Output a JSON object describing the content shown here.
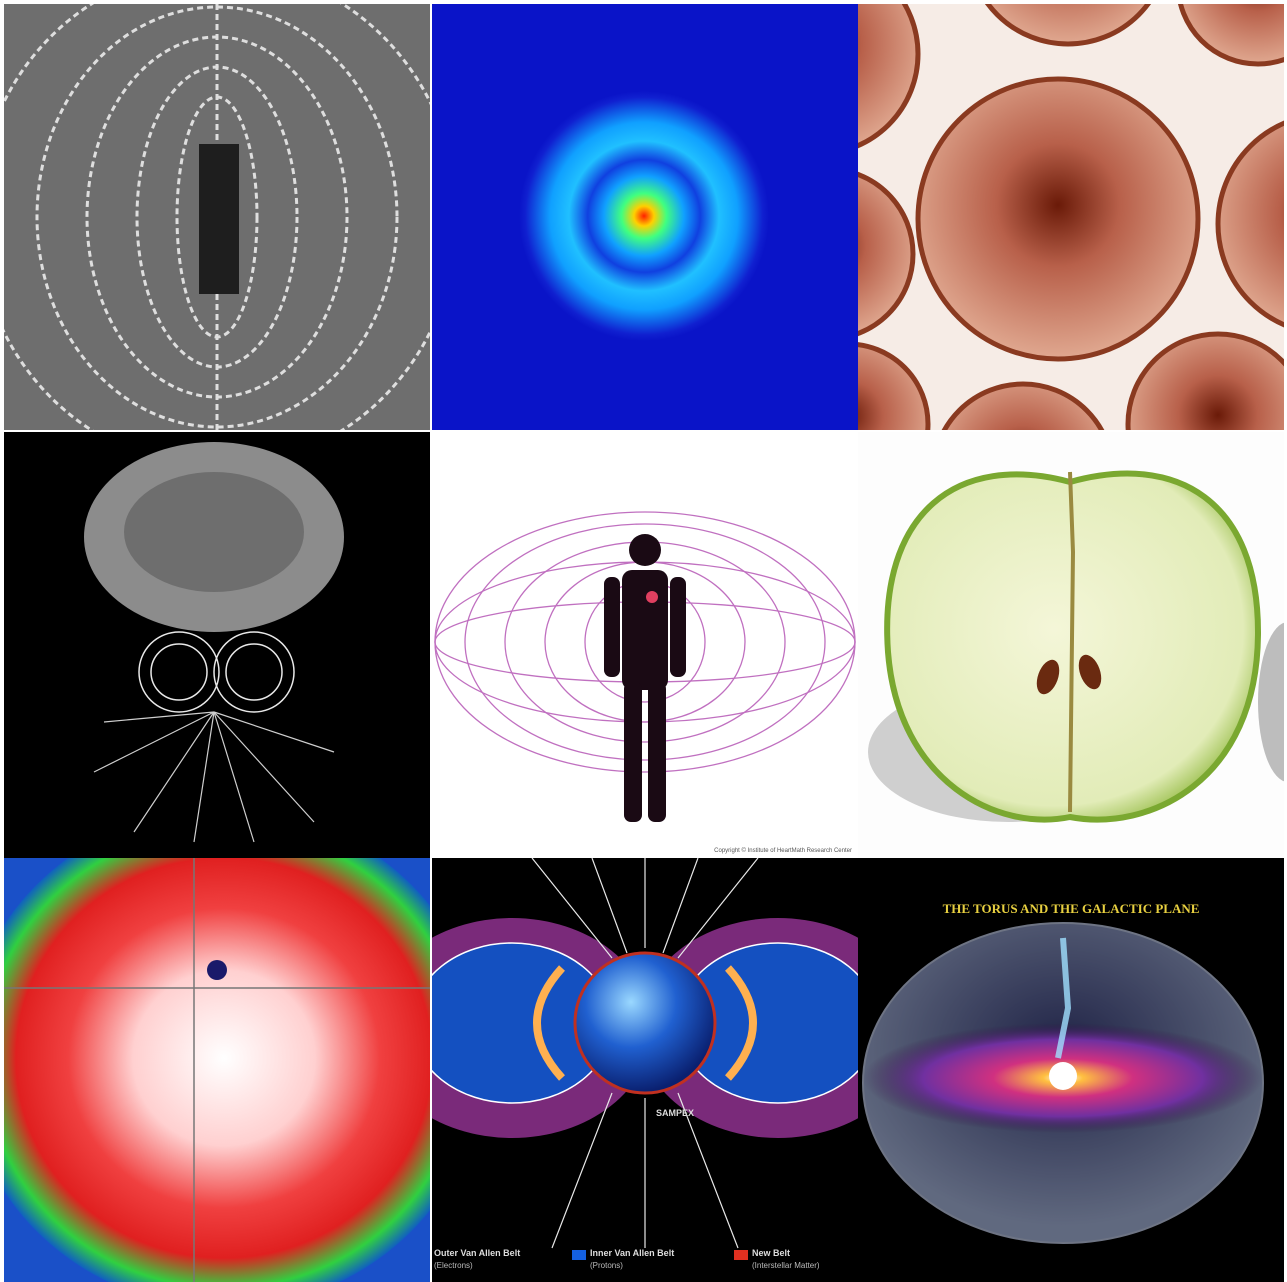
{
  "galactic_tile": {
    "title": "THE TORUS AND THE GALACTIC PLANE"
  },
  "belts_tile": {
    "satellite": "SAMPEX",
    "legend": [
      {
        "label": "Outer Van Allen Belt",
        "sub": "(Electrons)"
      },
      {
        "label": "Inner Van Allen Belt",
        "sub": "(Protons)"
      },
      {
        "label": "New Belt",
        "sub": "(Interstellar Matter)"
      }
    ]
  },
  "heart_tile": {
    "credit": "Copyright © Institute of HeartMath Research Center"
  }
}
